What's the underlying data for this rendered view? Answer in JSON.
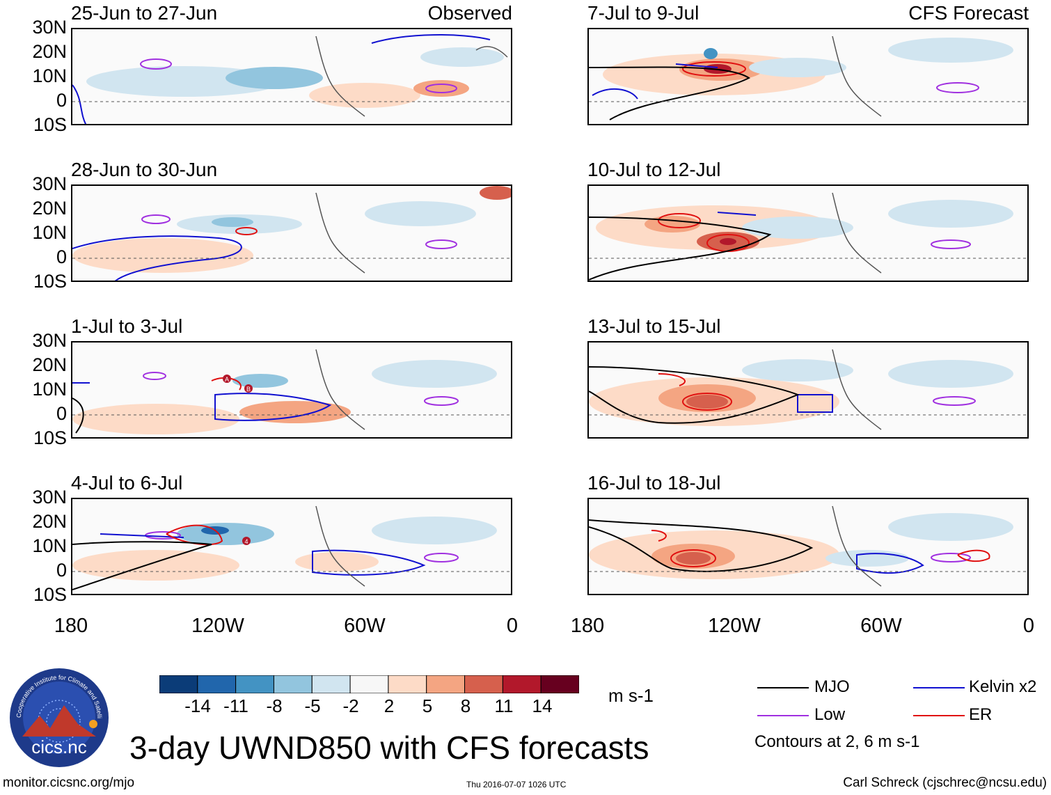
{
  "title": "3-day UWND850 with CFS forecasts",
  "url": "monitor.cicsnc.org/mjo",
  "timestamp": "Thu 2016-07-07 1026 UTC",
  "author": "Carl Schreck (cjschrec@ncsu.edu)",
  "logo": {
    "text": "cics.nc",
    "ring_text": "Cooperative Institute for Climate and Satellites"
  },
  "columns": {
    "left_label": "Observed",
    "right_label": "CFS Forecast"
  },
  "lat_labels": [
    "30N",
    "20N",
    "10N",
    "0",
    "10S"
  ],
  "lon_labels": [
    "180",
    "120W",
    "60W",
    "0"
  ],
  "panels_left": [
    {
      "title": "25-Jun to 27-Jun"
    },
    {
      "title": "28-Jun to 30-Jun"
    },
    {
      "title": "1-Jul to 3-Jul"
    },
    {
      "title": "4-Jul to 6-Jul"
    }
  ],
  "panels_right": [
    {
      "title": "7-Jul to 9-Jul"
    },
    {
      "title": "10-Jul to 12-Jul"
    },
    {
      "title": "13-Jul to 15-Jul"
    },
    {
      "title": "16-Jul to 18-Jul"
    }
  ],
  "colorbar": {
    "units": "m s-1",
    "labels": [
      "-14",
      "-11",
      "-8",
      "-5",
      "-2",
      "2",
      "5",
      "8",
      "11",
      "14"
    ],
    "colors": [
      "#0b3c78",
      "#2166ac",
      "#4393c3",
      "#92c5de",
      "#d1e5f0",
      "#f7f7f7",
      "#fddbc7",
      "#f4a582",
      "#d6604d",
      "#b2182b",
      "#67001f"
    ]
  },
  "legend": {
    "items": [
      {
        "label": "MJO",
        "color": "#000000"
      },
      {
        "label": "Kelvin x2",
        "color": "#1010d0"
      },
      {
        "label": "Low",
        "color": "#a030e0"
      },
      {
        "label": "ER",
        "color": "#e01010"
      }
    ],
    "note": "Contours at 2, 6 m s-1"
  },
  "storm_markers": [
    "A",
    "B",
    "4"
  ]
}
